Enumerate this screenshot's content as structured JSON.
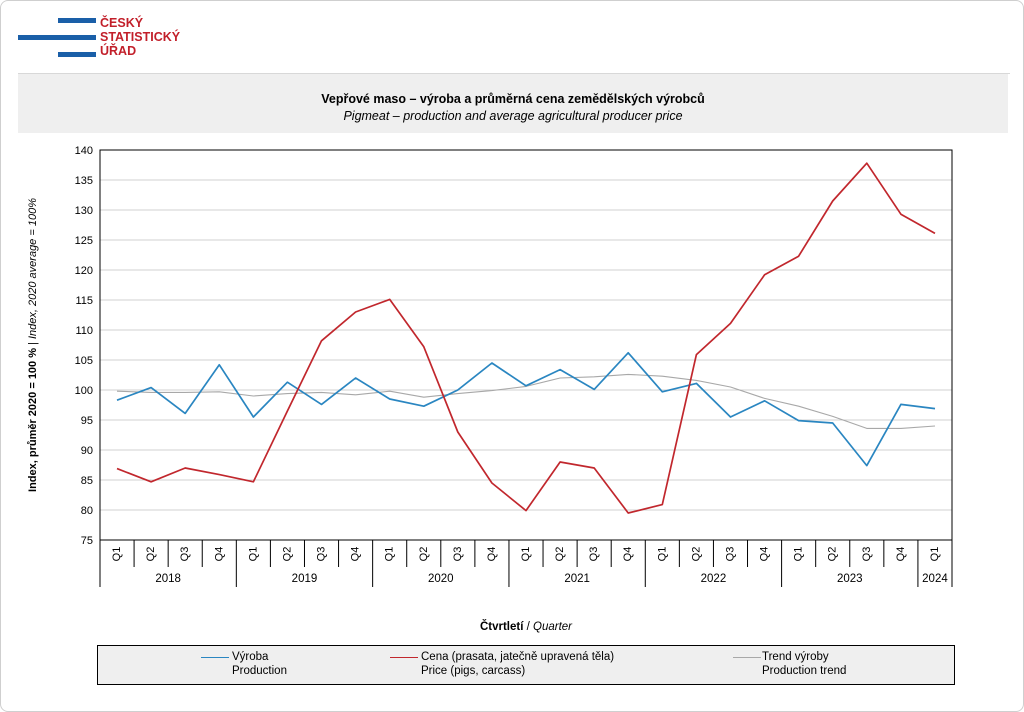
{
  "logo": {
    "line1": "ČESKÝ",
    "line2": "STATISTICKÝ",
    "line3": "ÚŘAD"
  },
  "chart_data": {
    "type": "line",
    "title": "Vepřové maso – výroba a průměrná cena zemědělských  výrobců",
    "subtitle": "Pigmeat – production and average agricultural producer price",
    "ylabel_bold": "Index, průměr 2020 = 100 %",
    "ylabel_sep": " | ",
    "ylabel_italic": "Index, 2020 average = 100%",
    "xlabel_bold": "Čtvrtletí",
    "xlabel_sep": " / ",
    "xlabel_italic": "Quarter",
    "ylim": [
      75,
      140
    ],
    "yticks": [
      75,
      80,
      85,
      90,
      95,
      100,
      105,
      110,
      115,
      120,
      125,
      130,
      135,
      140
    ],
    "grid": true,
    "quarters": [
      "Q1",
      "Q2",
      "Q3",
      "Q4",
      "Q1",
      "Q2",
      "Q3",
      "Q4",
      "Q1",
      "Q2",
      "Q3",
      "Q4",
      "Q1",
      "Q2",
      "Q3",
      "Q4",
      "Q1",
      "Q2",
      "Q3",
      "Q4",
      "Q1",
      "Q2",
      "Q3",
      "Q4",
      "Q1"
    ],
    "years": [
      {
        "label": "2018",
        "count": 4
      },
      {
        "label": "2019",
        "count": 4
      },
      {
        "label": "2020",
        "count": 4
      },
      {
        "label": "2021",
        "count": 4
      },
      {
        "label": "2022",
        "count": 4
      },
      {
        "label": "2023",
        "count": 4
      },
      {
        "label": "2024",
        "count": 1
      }
    ],
    "series": [
      {
        "name": "Výroba",
        "name_en": "Production",
        "color": "#2a86c1",
        "width": 1.7,
        "values": [
          98.3,
          100.4,
          96.1,
          104.2,
          95.5,
          101.3,
          97.6,
          102.0,
          98.5,
          97.3,
          100.0,
          104.5,
          100.7,
          103.4,
          100.1,
          106.2,
          99.7,
          101.1,
          95.5,
          98.2,
          94.9,
          94.5,
          87.4,
          97.6,
          96.9
        ]
      },
      {
        "name": "Cena (prasata, jatečně upravená těla)",
        "name_en": "Price (pigs, carcass)",
        "color": "#c1272d",
        "width": 1.7,
        "values": [
          86.9,
          84.7,
          87.0,
          85.9,
          84.7,
          96.5,
          108.2,
          113.0,
          115.1,
          107.2,
          93.0,
          84.5,
          79.9,
          88.0,
          87.0,
          79.5,
          80.9,
          105.9,
          111.1,
          119.2,
          122.3,
          131.5,
          137.8,
          129.3,
          126.1
        ]
      },
      {
        "name": "Trend výroby",
        "name_en": "Production trend",
        "color": "#a8a8a8",
        "width": 1.1,
        "values": [
          99.8,
          99.6,
          99.6,
          99.7,
          99.0,
          99.4,
          99.6,
          99.2,
          99.8,
          98.8,
          99.4,
          99.9,
          100.6,
          102.0,
          102.2,
          102.6,
          102.3,
          101.6,
          100.5,
          98.6,
          97.3,
          95.6,
          93.6,
          93.6,
          94.0
        ]
      }
    ],
    "legend_position": "bottom"
  }
}
